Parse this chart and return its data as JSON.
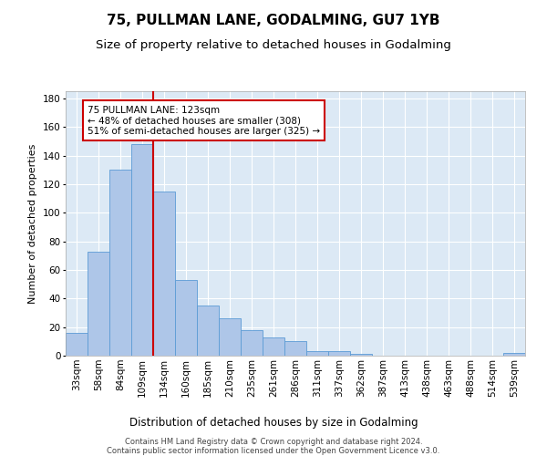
{
  "title": "75, PULLMAN LANE, GODALMING, GU7 1YB",
  "subtitle": "Size of property relative to detached houses in Godalming",
  "xlabel": "Distribution of detached houses by size in Godalming",
  "ylabel": "Number of detached properties",
  "categories": [
    "33sqm",
    "58sqm",
    "84sqm",
    "109sqm",
    "134sqm",
    "160sqm",
    "185sqm",
    "210sqm",
    "235sqm",
    "261sqm",
    "286sqm",
    "311sqm",
    "337sqm",
    "362sqm",
    "387sqm",
    "413sqm",
    "438sqm",
    "463sqm",
    "488sqm",
    "514sqm",
    "539sqm"
  ],
  "values": [
    16,
    73,
    130,
    148,
    115,
    53,
    35,
    26,
    18,
    13,
    10,
    3,
    3,
    1,
    0,
    0,
    0,
    0,
    0,
    0,
    2
  ],
  "bar_color": "#aec6e8",
  "bar_edge_color": "#5b9bd5",
  "vline_x": 3.5,
  "vline_color": "#cc0000",
  "annotation_text": "75 PULLMAN LANE: 123sqm\n← 48% of detached houses are smaller (308)\n51% of semi-detached houses are larger (325) →",
  "annotation_box_facecolor": "#ffffff",
  "annotation_box_edgecolor": "#cc0000",
  "ylim": [
    0,
    185
  ],
  "yticks": [
    0,
    20,
    40,
    60,
    80,
    100,
    120,
    140,
    160,
    180
  ],
  "plot_bg_color": "#dce9f5",
  "footer_line1": "Contains HM Land Registry data © Crown copyright and database right 2024.",
  "footer_line2": "Contains public sector information licensed under the Open Government Licence v3.0.",
  "title_fontsize": 11,
  "subtitle_fontsize": 9.5,
  "xlabel_fontsize": 8.5,
  "ylabel_fontsize": 8,
  "tick_fontsize": 7.5,
  "footer_fontsize": 6,
  "annotation_fontsize": 7.5
}
